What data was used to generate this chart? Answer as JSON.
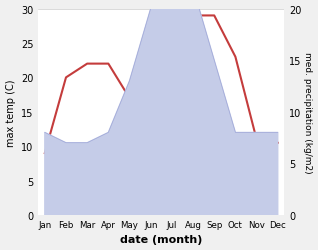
{
  "months": [
    "Jan",
    "Feb",
    "Mar",
    "Apr",
    "May",
    "Jun",
    "Jul",
    "Aug",
    "Sep",
    "Oct",
    "Nov",
    "Dec"
  ],
  "temperature": [
    9,
    20,
    22,
    22,
    17,
    20,
    30,
    29,
    29,
    23,
    11,
    10.5
  ],
  "precipitation": [
    8,
    7,
    7,
    8,
    13,
    20,
    25,
    22,
    15,
    8,
    8,
    8
  ],
  "temp_color": "#c43c3c",
  "precip_fill_color": "#c5cce8",
  "precip_edge_color": "#a0a8d8",
  "xlabel": "date (month)",
  "ylabel_left": "max temp (C)",
  "ylabel_right": "med. precipitation (kg/m2)",
  "ylim_left": [
    0,
    30
  ],
  "ylim_right": [
    0,
    20
  ],
  "yticks_left": [
    0,
    5,
    10,
    15,
    20,
    25,
    30
  ],
  "yticks_right": [
    0,
    5,
    10,
    15,
    20
  ],
  "bg_color": "#f0f0f0",
  "plot_bg_color": "#f0f0f0"
}
